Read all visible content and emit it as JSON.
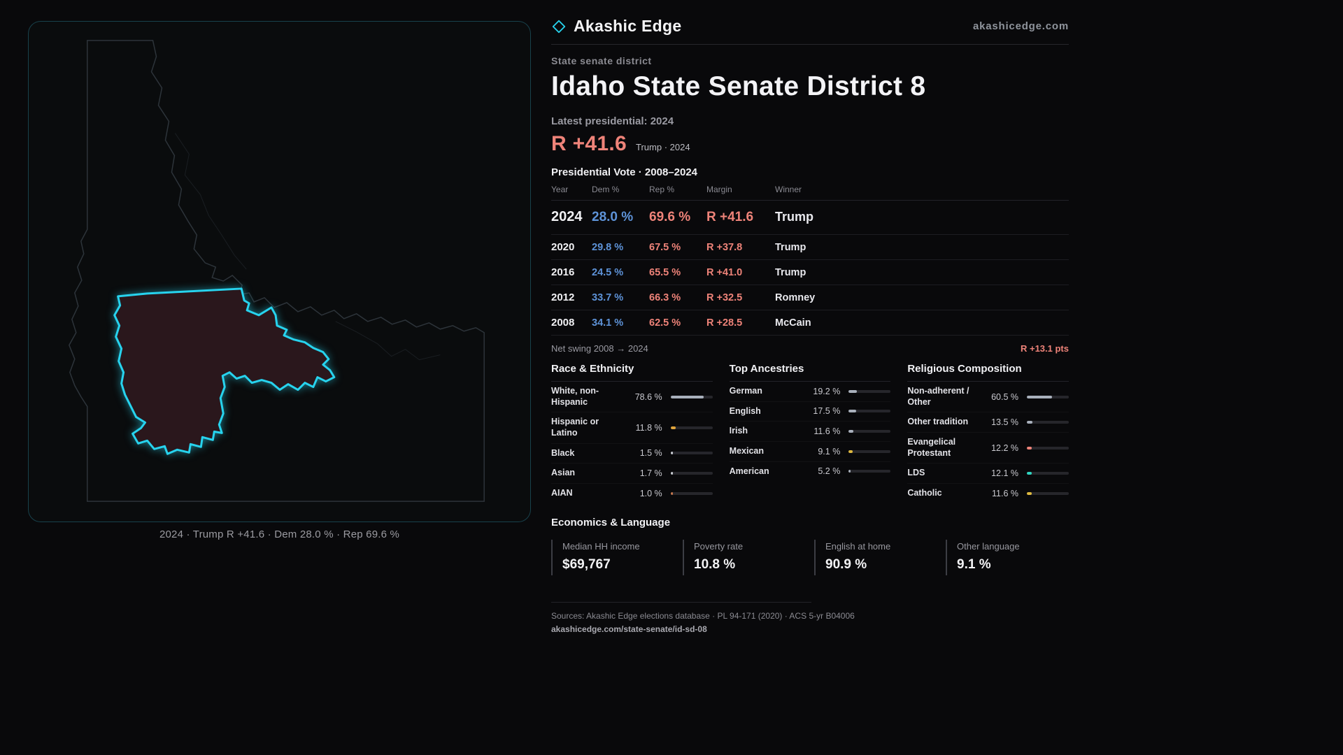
{
  "colors": {
    "accent_cyan": "#27d3ee",
    "dem_blue": "#5e93d8",
    "rep_red": "#ee8379",
    "district_fill": "#2a171c"
  },
  "header": {
    "brand": "Akashic Edge",
    "site": "akashicedge.com"
  },
  "district": {
    "kicker": "State senate district",
    "title": "Idaho State Senate District 8",
    "latest_label": "Latest presidential: 2024",
    "margin_big": "R +41.6",
    "margin_note": "Trump · 2024"
  },
  "vote_table": {
    "title": "Presidential Vote · 2008–2024",
    "columns": [
      "Year",
      "Dem %",
      "Rep %",
      "Margin",
      "Winner"
    ],
    "rows": [
      {
        "year": "2024",
        "dem": "28.0 %",
        "rep": "69.6 %",
        "margin": "R +41.6",
        "winner": "Trump",
        "highlight": true
      },
      {
        "year": "2020",
        "dem": "29.8 %",
        "rep": "67.5 %",
        "margin": "R +37.8",
        "winner": "Trump",
        "highlight": false
      },
      {
        "year": "2016",
        "dem": "24.5 %",
        "rep": "65.5 %",
        "margin": "R +41.0",
        "winner": "Trump",
        "highlight": false
      },
      {
        "year": "2012",
        "dem": "33.7 %",
        "rep": "66.3 %",
        "margin": "R +32.5",
        "winner": "Romney",
        "highlight": false
      },
      {
        "year": "2008",
        "dem": "34.1 %",
        "rep": "62.5 %",
        "margin": "R +28.5",
        "winner": "McCain",
        "highlight": false
      }
    ],
    "net_swing_label": "Net swing 2008 → 2024",
    "net_swing_value": "R +13.1 pts"
  },
  "demographics": [
    {
      "title": "Race & Ethnicity",
      "rows": [
        {
          "label": "White, non-Hispanic",
          "value": "78.6 %",
          "pct": 78.6,
          "color": "#a9b0bc"
        },
        {
          "label": "Hispanic or Latino",
          "value": "11.8 %",
          "pct": 11.8,
          "color": "#e0a43c"
        },
        {
          "label": "Black",
          "value": "1.5 %",
          "pct": 1.5,
          "color": "#c9ccd2"
        },
        {
          "label": "Asian",
          "value": "1.7 %",
          "pct": 1.7,
          "color": "#c9ccd2"
        },
        {
          "label": "AIAN",
          "value": "1.0 %",
          "pct": 1.0,
          "color": "#c4764d"
        }
      ]
    },
    {
      "title": "Top Ancestries",
      "rows": [
        {
          "label": "German",
          "value": "19.2 %",
          "pct": 19.2,
          "color": "#a9b0bc"
        },
        {
          "label": "English",
          "value": "17.5 %",
          "pct": 17.5,
          "color": "#a9b0bc"
        },
        {
          "label": "Irish",
          "value": "11.6 %",
          "pct": 11.6,
          "color": "#a9b0bc"
        },
        {
          "label": "Mexican",
          "value": "9.1 %",
          "pct": 9.1,
          "color": "#ddb83f"
        },
        {
          "label": "American",
          "value": "5.2 %",
          "pct": 5.2,
          "color": "#a9b0bc"
        }
      ]
    },
    {
      "title": "Religious Composition",
      "rows": [
        {
          "label": "Non-adherent / Other",
          "value": "60.5 %",
          "pct": 60.5,
          "color": "#a9b0bc"
        },
        {
          "label": "Other tradition",
          "value": "13.5 %",
          "pct": 13.5,
          "color": "#a9b0bc"
        },
        {
          "label": "Evangelical Protestant",
          "value": "12.2 %",
          "pct": 12.2,
          "color": "#ee8379"
        },
        {
          "label": "LDS",
          "value": "12.1 %",
          "pct": 12.1,
          "color": "#2fd4c0"
        },
        {
          "label": "Catholic",
          "value": "11.6 %",
          "pct": 11.6,
          "color": "#ddb83f"
        }
      ]
    }
  ],
  "economics": {
    "title": "Economics & Language",
    "stats": [
      {
        "label": "Median HH income",
        "value": "$69,767"
      },
      {
        "label": "Poverty rate",
        "value": "10.8 %"
      },
      {
        "label": "English at home",
        "value": "90.9 %"
      },
      {
        "label": "Other language",
        "value": "9.1 %"
      }
    ]
  },
  "map": {
    "caption": "2024 · Trump R +41.6 · Dem 28.0 % · Rep 69.6 %"
  },
  "footer": {
    "sources": "Sources: Akashic Edge elections database · PL 94-171 (2020) · ACS 5-yr B04006",
    "permalink": "akashicedge.com/state-senate/id-sd-08"
  }
}
